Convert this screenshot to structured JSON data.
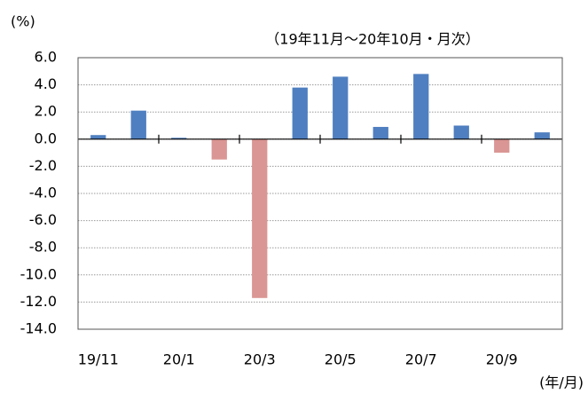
{
  "chart_data": {
    "type": "bar",
    "y_unit": "(%)",
    "subtitle": "（19年11月～20年10月・月次）",
    "x_label": "(年/月)",
    "categories": [
      "19/11",
      null,
      "20/1",
      null,
      "20/3",
      null,
      "20/5",
      null,
      "20/7",
      null,
      "20/9",
      null
    ],
    "values": [
      0.3,
      2.1,
      0.1,
      -1.5,
      -11.7,
      3.8,
      4.6,
      0.9,
      4.8,
      1.0,
      -1.0,
      0.5
    ],
    "color": "#4f7fc0",
    "negative_color": "#da9694",
    "ylim": [
      -14,
      6
    ],
    "yticks": [
      {
        "value": 6,
        "label": "6.0"
      },
      {
        "value": 4,
        "label": "4.0"
      },
      {
        "value": 2,
        "label": "2.0"
      },
      {
        "value": 0,
        "label": "0.0"
      },
      {
        "value": -2,
        "label": "-2.0"
      },
      {
        "value": -4,
        "label": "-4.0"
      },
      {
        "value": -6,
        "label": "-6.0"
      },
      {
        "value": -8,
        "label": "-8.0"
      },
      {
        "value": -10,
        "label": "-10.0"
      },
      {
        "value": -12,
        "label": "-12.0"
      },
      {
        "value": -14,
        "label": "-14.0"
      }
    ],
    "grid": true
  }
}
